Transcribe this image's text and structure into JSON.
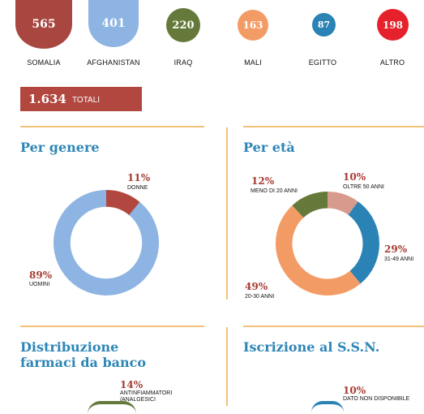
{
  "colors": {
    "somalia": "#a84740",
    "afghanistan": "#8db4e2",
    "iraq": "#657a3a",
    "mali": "#f39b65",
    "egitto": "#2a83b4",
    "altro": "#e5222b",
    "rule": "#f3c177",
    "title": "#2e86b6",
    "percent": "#a63b32"
  },
  "countries": [
    {
      "value": "565",
      "label": "SOMALIA"
    },
    {
      "value": "401",
      "label": "AFGHANISTAN"
    },
    {
      "value": "220",
      "label": "IRAQ"
    },
    {
      "value": "163",
      "label": "MALI"
    },
    {
      "value": "87",
      "label": "EGITTO"
    },
    {
      "value": "198",
      "label": "ALTRO"
    }
  ],
  "totals": {
    "value": "1.634",
    "label": "TOTALI"
  },
  "sections": {
    "genere": "Per genere",
    "eta": "Per età",
    "farmaci_line1": "Distribuzione",
    "farmaci_line2": "farmaci da banco",
    "ssn": "Iscrizione al S.S.N."
  },
  "chart_data": [
    {
      "type": "pie",
      "title": "Per genere",
      "categories": [
        "DONNE",
        "UOMINI"
      ],
      "values": [
        11,
        89
      ],
      "labels": [
        "11%",
        "89%"
      ],
      "colors": [
        "#b1473f",
        "#8db4e2"
      ]
    },
    {
      "type": "pie",
      "title": "Per età",
      "categories": [
        "OLTRE 50 ANNI",
        "31-49 ANNI",
        "20-30 ANNI",
        "MENO DI 20 ANNI"
      ],
      "values": [
        10,
        29,
        49,
        12
      ],
      "labels": [
        "10%",
        "29%",
        "49%",
        "12%"
      ],
      "colors": [
        "#d79b8d",
        "#2a83b4",
        "#f39b65",
        "#657a3a"
      ]
    },
    {
      "type": "pie",
      "title": "Distribuzione farmaci da banco",
      "categories": [
        "ANTINFIAMMATORI /ANALGESICI"
      ],
      "values": [
        14
      ],
      "labels": [
        "14%"
      ]
    },
    {
      "type": "pie",
      "title": "Iscrizione al S.S.N.",
      "categories": [
        "DATO NON DISPONIBILE"
      ],
      "values": [
        10
      ],
      "labels": [
        "10%"
      ]
    }
  ]
}
